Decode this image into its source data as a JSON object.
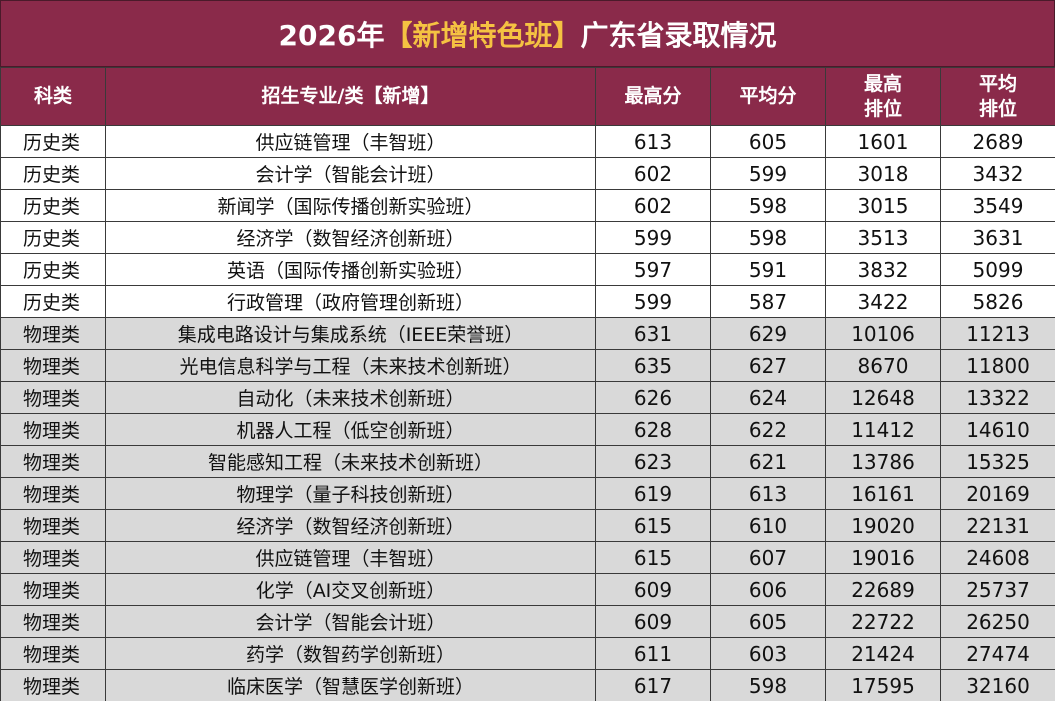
{
  "title": {
    "prefix": "2026年",
    "highlight": "【新增特色班】",
    "suffix": "广东省录取情况"
  },
  "colors": {
    "header_bg": "#8a2a4a",
    "highlight_text": "#f5c242",
    "physics_row_bg": "#d9d9d9"
  },
  "headers": {
    "category": "科类",
    "major": "招生专业/类【新增】",
    "max_score": "最高分",
    "avg_score": "平均分",
    "max_rank_l1": "最高",
    "max_rank_l2": "排位",
    "avg_rank_l1": "平均",
    "avg_rank_l2": "排位"
  },
  "rows": [
    {
      "category": "历史类",
      "major": "供应链管理（丰智班）",
      "max_score": "613",
      "avg_score": "605",
      "max_rank": "1601",
      "avg_rank": "2689"
    },
    {
      "category": "历史类",
      "major": "会计学（智能会计班）",
      "max_score": "602",
      "avg_score": "599",
      "max_rank": "3018",
      "avg_rank": "3432"
    },
    {
      "category": "历史类",
      "major": "新闻学（国际传播创新实验班）",
      "max_score": "602",
      "avg_score": "598",
      "max_rank": "3015",
      "avg_rank": "3549"
    },
    {
      "category": "历史类",
      "major": "经济学（数智经济创新班）",
      "max_score": "599",
      "avg_score": "598",
      "max_rank": "3513",
      "avg_rank": "3631"
    },
    {
      "category": "历史类",
      "major": "英语（国际传播创新实验班）",
      "max_score": "597",
      "avg_score": "591",
      "max_rank": "3832",
      "avg_rank": "5099"
    },
    {
      "category": "历史类",
      "major": "行政管理（政府管理创新班）",
      "max_score": "599",
      "avg_score": "587",
      "max_rank": "3422",
      "avg_rank": "5826"
    },
    {
      "category": "物理类",
      "major": "集成电路设计与集成系统（IEEE荣誉班）",
      "max_score": "631",
      "avg_score": "629",
      "max_rank": "10106",
      "avg_rank": "11213"
    },
    {
      "category": "物理类",
      "major": "光电信息科学与工程（未来技术创新班）",
      "max_score": "635",
      "avg_score": "627",
      "max_rank": "8670",
      "avg_rank": "11800"
    },
    {
      "category": "物理类",
      "major": "自动化（未来技术创新班）",
      "max_score": "626",
      "avg_score": "624",
      "max_rank": "12648",
      "avg_rank": "13322"
    },
    {
      "category": "物理类",
      "major": "机器人工程（低空创新班）",
      "max_score": "628",
      "avg_score": "622",
      "max_rank": "11412",
      "avg_rank": "14610"
    },
    {
      "category": "物理类",
      "major": "智能感知工程（未来技术创新班）",
      "max_score": "623",
      "avg_score": "621",
      "max_rank": "13786",
      "avg_rank": "15325"
    },
    {
      "category": "物理类",
      "major": "物理学（量子科技创新班）",
      "max_score": "619",
      "avg_score": "613",
      "max_rank": "16161",
      "avg_rank": "20169"
    },
    {
      "category": "物理类",
      "major": "经济学（数智经济创新班）",
      "max_score": "615",
      "avg_score": "610",
      "max_rank": "19020",
      "avg_rank": "22131"
    },
    {
      "category": "物理类",
      "major": "供应链管理（丰智班）",
      "max_score": "615",
      "avg_score": "607",
      "max_rank": "19016",
      "avg_rank": "24608"
    },
    {
      "category": "物理类",
      "major": "化学（AI交叉创新班）",
      "max_score": "609",
      "avg_score": "606",
      "max_rank": "22689",
      "avg_rank": "25737"
    },
    {
      "category": "物理类",
      "major": "会计学（智能会计班）",
      "max_score": "609",
      "avg_score": "605",
      "max_rank": "22722",
      "avg_rank": "26250"
    },
    {
      "category": "物理类",
      "major": "药学（数智药学创新班）",
      "max_score": "611",
      "avg_score": "603",
      "max_rank": "21424",
      "avg_rank": "27474"
    },
    {
      "category": "物理类",
      "major": "临床医学（智慧医学创新班）",
      "max_score": "617",
      "avg_score": "598",
      "max_rank": "17595",
      "avg_rank": "32160"
    }
  ]
}
